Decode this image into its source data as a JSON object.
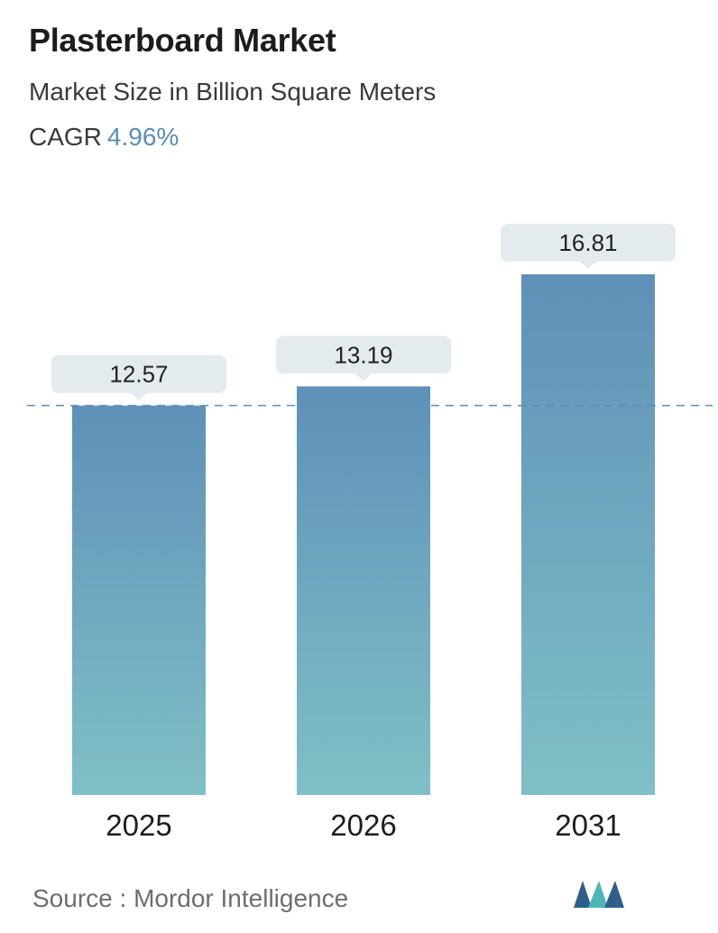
{
  "header": {
    "title": "Plasterboard Market",
    "subtitle": "Market Size in Billion Square Meters",
    "cagr_label": "CAGR",
    "cagr_value": "4.96%"
  },
  "footer": {
    "source_label": "Source :",
    "source_name": "Mordor Intelligence"
  },
  "colors": {
    "bar_top": "#5f90b8",
    "bar_bottom": "#7fc0c6",
    "callout_bg": "#e3ebee",
    "reference_line": "#5e8cb0",
    "cagr_accent": "#5b8db5",
    "logo_dark": "#2e5f8a",
    "logo_teal": "#4fb6b8"
  },
  "chart_data": {
    "type": "bar",
    "categories": [
      "2025",
      "2026",
      "2031"
    ],
    "values": [
      12.57,
      13.19,
      16.81
    ],
    "value_labels": [
      "12.57",
      "13.19",
      "16.81"
    ],
    "reference_line_value": 12.57,
    "title": "Plasterboard Market",
    "ylabel": "Market Size in Billion Square Meters",
    "ylim": [
      0,
      16.81
    ],
    "grid": false,
    "legend": false
  }
}
